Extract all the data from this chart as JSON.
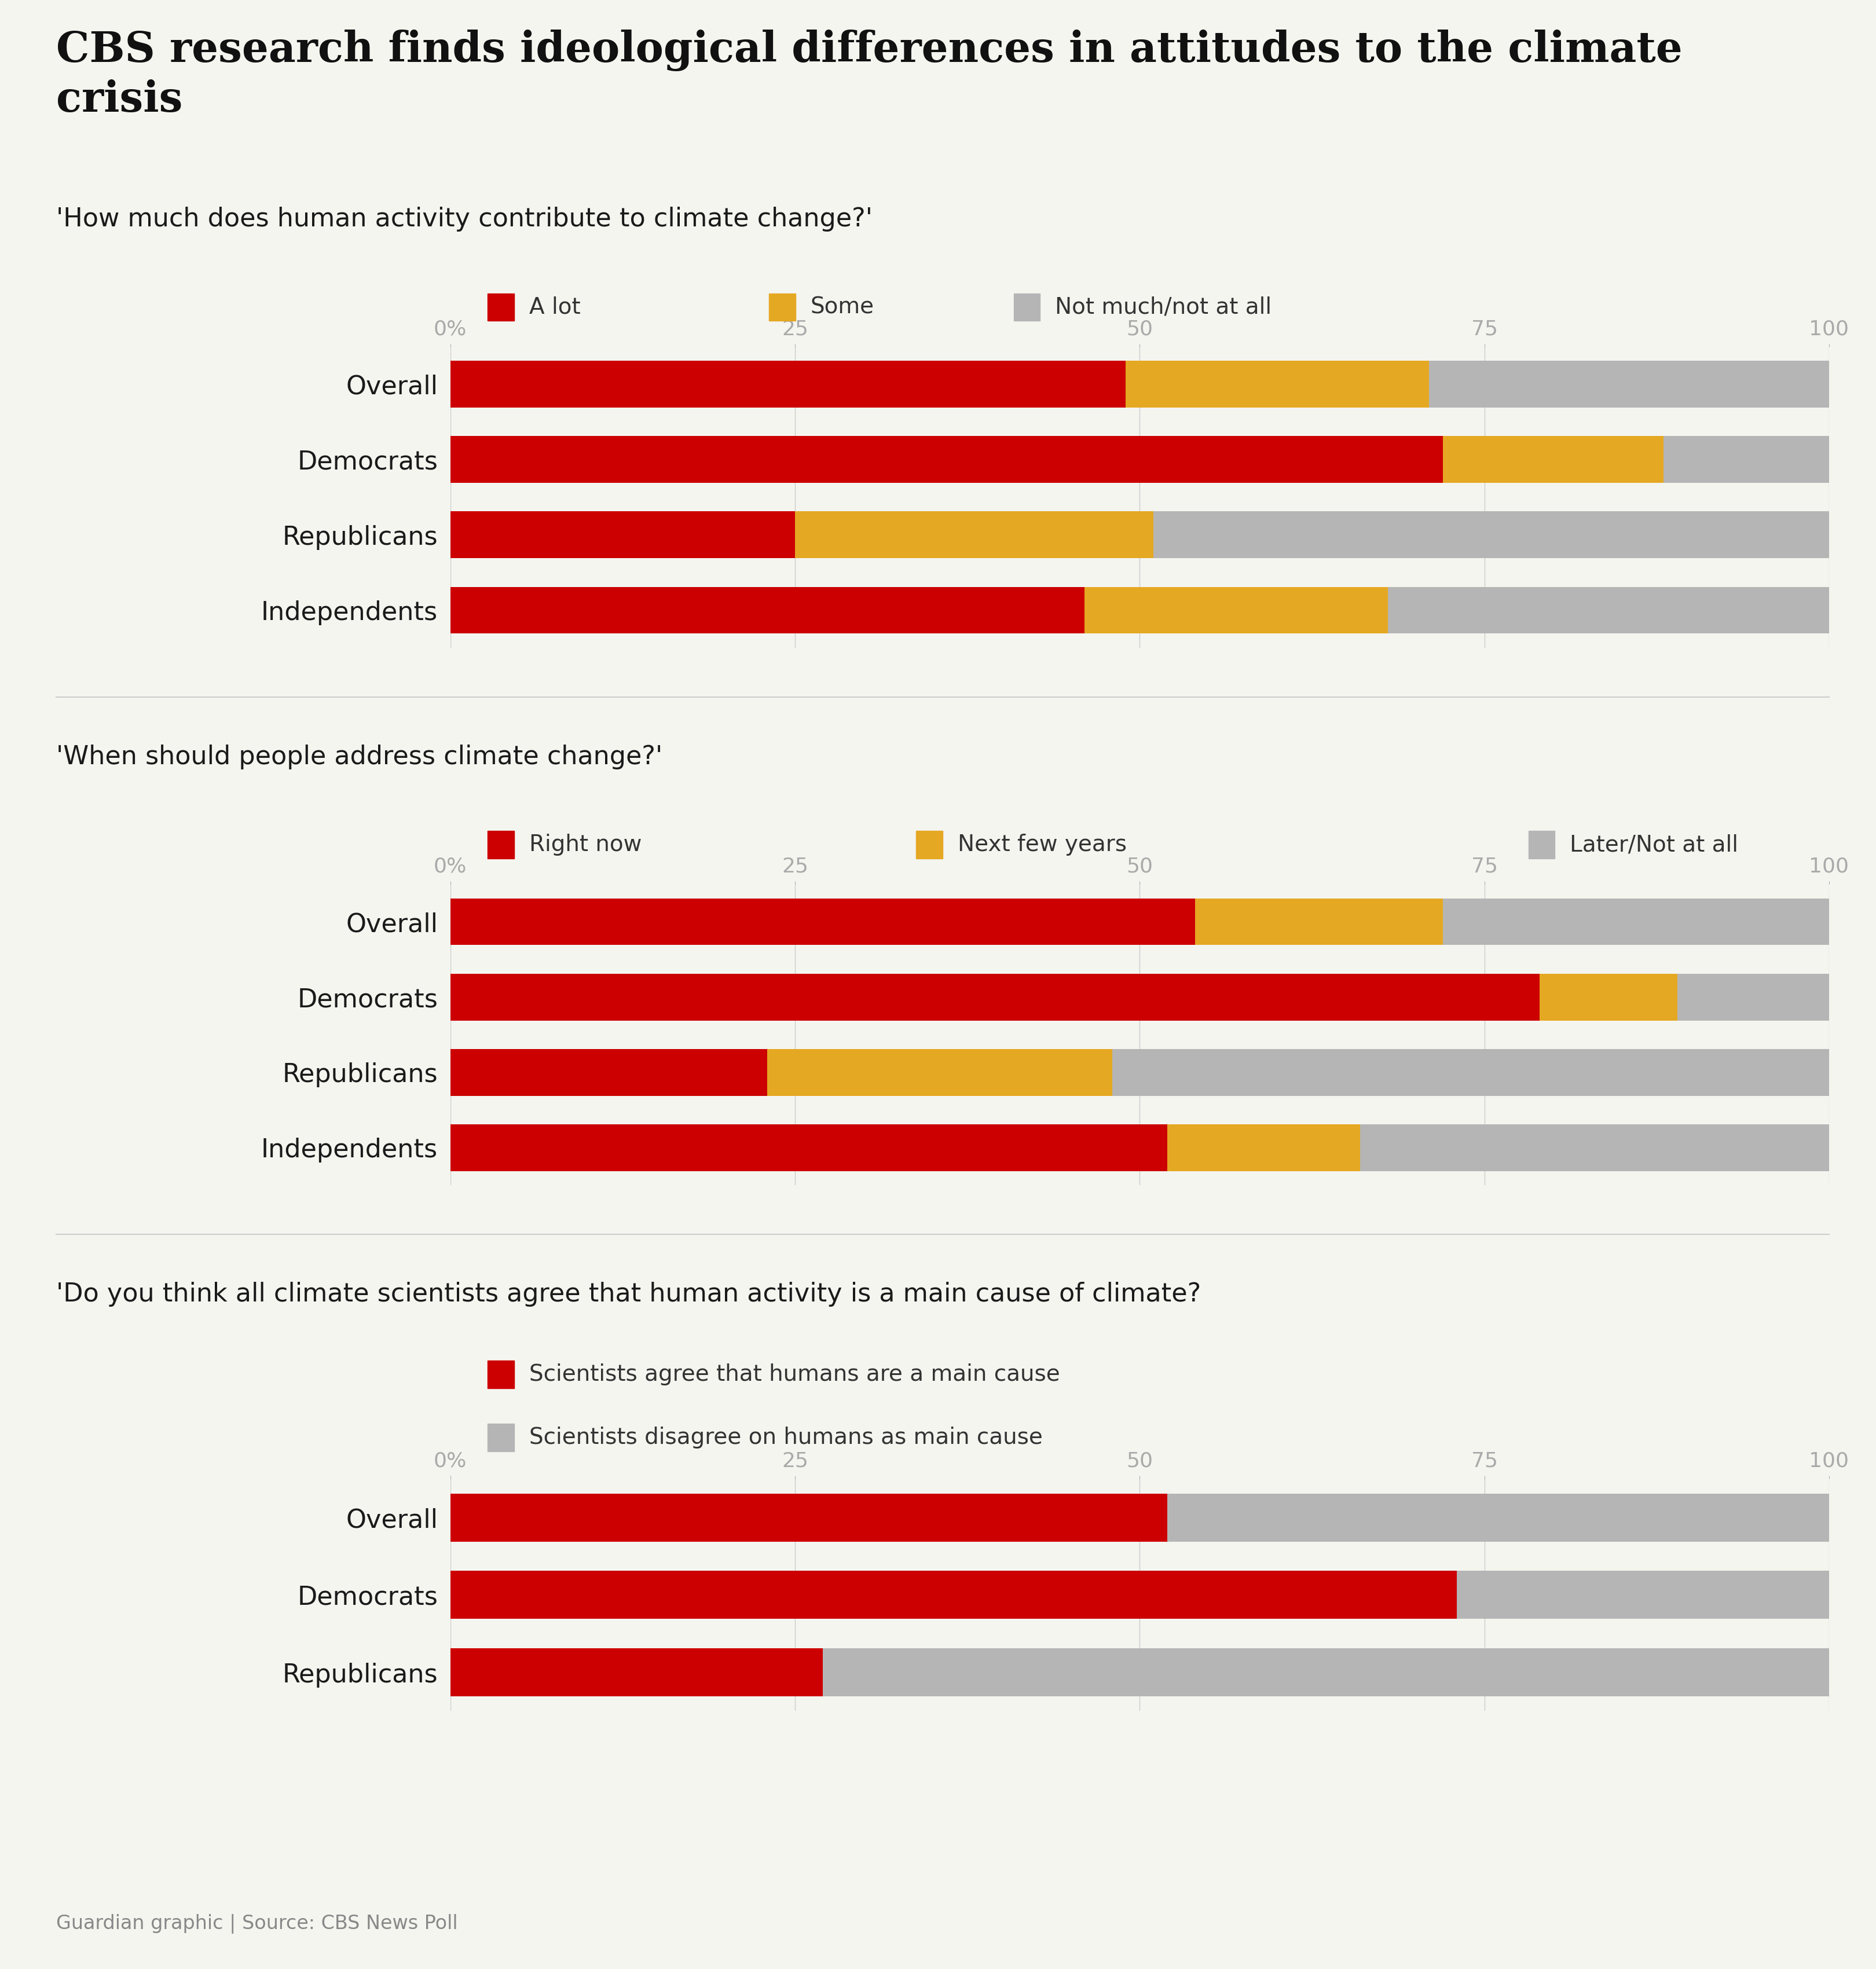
{
  "title": "CBS research finds ideological differences in attitudes to the climate\ncrisis",
  "background_color": "#f5f5f0",
  "bar_height": 0.62,
  "colors": {
    "red": "#cc0000",
    "gold": "#e5a823",
    "gray": "#b5b5b5"
  },
  "chart1": {
    "question": "'How much does human activity contribute to climate change?'",
    "legend": [
      "A lot",
      "Some",
      "Not much/not at all"
    ],
    "categories": [
      "Overall",
      "Democrats",
      "Republicans",
      "Independents"
    ],
    "data": [
      [
        49,
        22,
        29
      ],
      [
        72,
        16,
        12
      ],
      [
        25,
        26,
        49
      ],
      [
        46,
        22,
        32
      ]
    ]
  },
  "chart2": {
    "question": "'When should people address climate change?'",
    "legend": [
      "Right now",
      "Next few years",
      "Later/Not at all"
    ],
    "categories": [
      "Overall",
      "Democrats",
      "Republicans",
      "Independents"
    ],
    "data": [
      [
        54,
        18,
        28
      ],
      [
        79,
        10,
        11
      ],
      [
        23,
        25,
        52
      ],
      [
        52,
        14,
        34
      ]
    ]
  },
  "chart3": {
    "question": "'Do you think all climate scientists agree that human activity is a main cause of climate?",
    "legend": [
      "Scientists agree that humans are a main cause",
      "Scientists disagree on humans as main cause"
    ],
    "categories": [
      "Overall",
      "Democrats",
      "Republicans"
    ],
    "data": [
      [
        52,
        48
      ],
      [
        73,
        27
      ],
      [
        27,
        73
      ]
    ]
  },
  "footer": "Guardian graphic | Source: CBS News Poll",
  "label_color": "#1a1a1a",
  "question_color": "#1a1a1a",
  "tick_label_color": "#aaaaaa",
  "title_fontsize": 52,
  "question_fontsize": 32,
  "category_fontsize": 32,
  "legend_fontsize": 28,
  "tick_fontsize": 26,
  "footer_fontsize": 24
}
